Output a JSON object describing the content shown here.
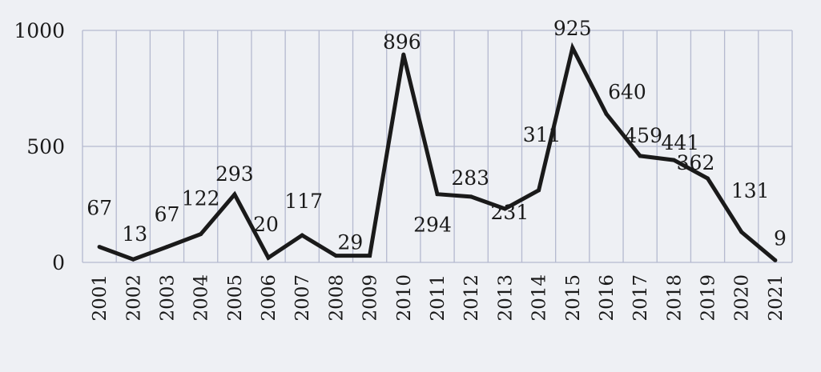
{
  "chart_data": {
    "type": "line",
    "title": "",
    "xlabel": "",
    "ylabel": "",
    "ylim": [
      0,
      1000
    ],
    "yticks": [
      "0",
      "500",
      "1000"
    ],
    "grid": true,
    "legend": "none",
    "x": [
      "2001",
      "2002",
      "2003",
      "2004",
      "2005",
      "2006",
      "2007",
      "2008",
      "2009",
      "2010",
      "2011",
      "2012",
      "2013",
      "2014",
      "2015",
      "2016",
      "2017",
      "2018",
      "2019",
      "2020",
      "2021"
    ],
    "series": [
      {
        "values": [
          67,
          13,
          67,
          122,
          293,
          20,
          117,
          29,
          29,
          896,
          294,
          283,
          231,
          311,
          925,
          640,
          459,
          441,
          362,
          131,
          9
        ],
        "labels": [
          "67",
          "13",
          "67",
          "122",
          "293",
          "20",
          "117",
          "29",
          "",
          "896",
          "294",
          "283",
          "231",
          "311",
          "925",
          "640",
          "459",
          "441",
          "362",
          "131",
          "9"
        ]
      }
    ],
    "colors": {
      "line": "#1a1a1a",
      "grid": "#b4b9cf",
      "background": "#eef0f4"
    }
  }
}
